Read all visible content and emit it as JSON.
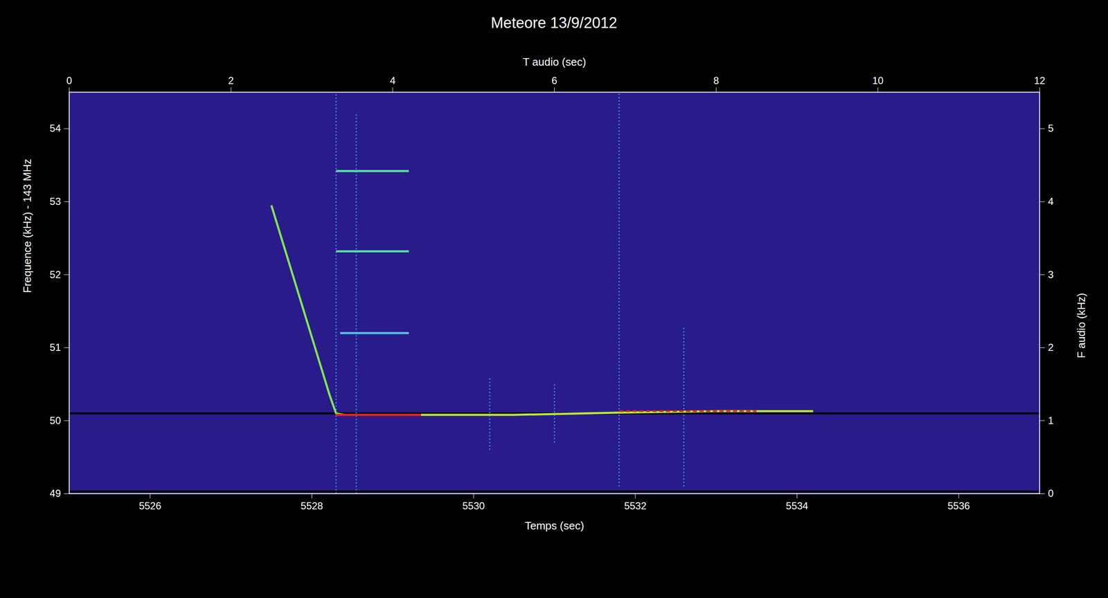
{
  "chart_data": {
    "type": "spectrogram",
    "title": "Meteore 13/9/2012",
    "x_label": "Temps (sec)",
    "y_label": "Frequence (kHz) - 143 MHz",
    "x2_label": "T audio (sec)",
    "y2_label": "F audio (kHz)",
    "xlim": [
      5525,
      5537
    ],
    "xticks": [
      5526,
      5528,
      5530,
      5532,
      5534,
      5536
    ],
    "ylim": [
      49,
      54.5
    ],
    "yticks": [
      49,
      50,
      51,
      52,
      53,
      54
    ],
    "x2lim": [
      0,
      12
    ],
    "x2ticks": [
      0,
      2,
      4,
      6,
      8,
      10,
      12
    ],
    "y2lim": [
      0,
      5.5
    ],
    "y2ticks": [
      0,
      1,
      2,
      3,
      4,
      5
    ],
    "grid": false,
    "series": [
      {
        "x": [
          5525,
          5537
        ],
        "values": [
          50.1,
          50.1
        ],
        "color": "#05050f",
        "line_style": "solid"
      },
      {
        "x": [
          5525,
          5537
        ],
        "values": [
          49.03,
          49.03
        ],
        "color": "#05050f",
        "line_style": "solid"
      },
      {
        "x": [
          5528.3,
          5528.3
        ],
        "values": [
          49,
          54.5
        ],
        "color": "#3fa9e8",
        "line_style": "dotted"
      },
      {
        "x": [
          5528.55,
          5528.55
        ],
        "values": [
          49,
          54.2
        ],
        "color": "#3fa9e8",
        "line_style": "dotted"
      },
      {
        "x": [
          5530.2,
          5530.2
        ],
        "values": [
          49.6,
          50.6
        ],
        "color": "#3fa9e8",
        "line_style": "dotted"
      },
      {
        "x": [
          5531.0,
          5531.0
        ],
        "values": [
          49.7,
          50.5
        ],
        "color": "#3fa9e8",
        "line_style": "dotted"
      },
      {
        "x": [
          5531.8,
          5531.8
        ],
        "values": [
          49.1,
          54.5
        ],
        "color": "#3fa9e8",
        "line_style": "dotted"
      },
      {
        "x": [
          5532.6,
          5532.6
        ],
        "values": [
          49.1,
          51.3
        ],
        "color": "#3fa9e8",
        "line_style": "dotted"
      },
      {
        "x": [
          5528.3,
          5529.2
        ],
        "values": [
          53.42,
          53.42
        ],
        "color": "#56e3a0",
        "line_style": "solid"
      },
      {
        "x": [
          5528.3,
          5529.2
        ],
        "values": [
          52.32,
          52.32
        ],
        "color": "#56e3a0",
        "line_style": "solid"
      },
      {
        "x": [
          5528.35,
          5529.2
        ],
        "values": [
          51.2,
          51.2
        ],
        "color": "#4cc4e0",
        "line_style": "solid"
      },
      {
        "x": [
          5527.5,
          5528.22,
          5528.3,
          5528.4
        ],
        "values": [
          52.95,
          50.35,
          50.1,
          50.08
        ],
        "color": "#7de84e",
        "line_style": "solid"
      },
      {
        "x": [
          5528.3,
          5529.35
        ],
        "values": [
          50.08,
          50.08
        ],
        "color": "#e8261a",
        "line_style": "solid"
      },
      {
        "x": [
          5529.35,
          5530.5,
          5531.8,
          5533,
          5534.2
        ],
        "values": [
          50.08,
          50.08,
          50.11,
          50.13,
          50.13
        ],
        "color": "#b8e83a",
        "line_style": "solid"
      },
      {
        "x": [
          5531.8,
          5533.5
        ],
        "values": [
          50.13,
          50.13
        ],
        "color": "#e8261a",
        "line_style": "dashed"
      }
    ]
  }
}
